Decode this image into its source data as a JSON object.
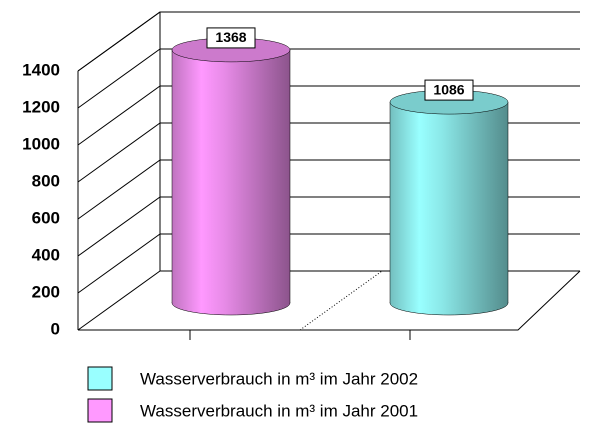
{
  "chart_data": {
    "type": "bar",
    "categories": [
      null,
      null
    ],
    "series": [
      {
        "name": "Wasserverbrauch in m³ im Jahr 2002",
        "color": "#99ffff",
        "values": [
          null,
          1086
        ]
      },
      {
        "name": "Wasserverbrauch in m³ im Jahr 2001",
        "color": "#ff99ff",
        "values": [
          1368,
          null
        ]
      }
    ],
    "ylim": [
      0,
      1400
    ],
    "yticks": [
      0,
      200,
      400,
      600,
      800,
      1000,
      1200,
      1400
    ],
    "grid": true
  }
}
